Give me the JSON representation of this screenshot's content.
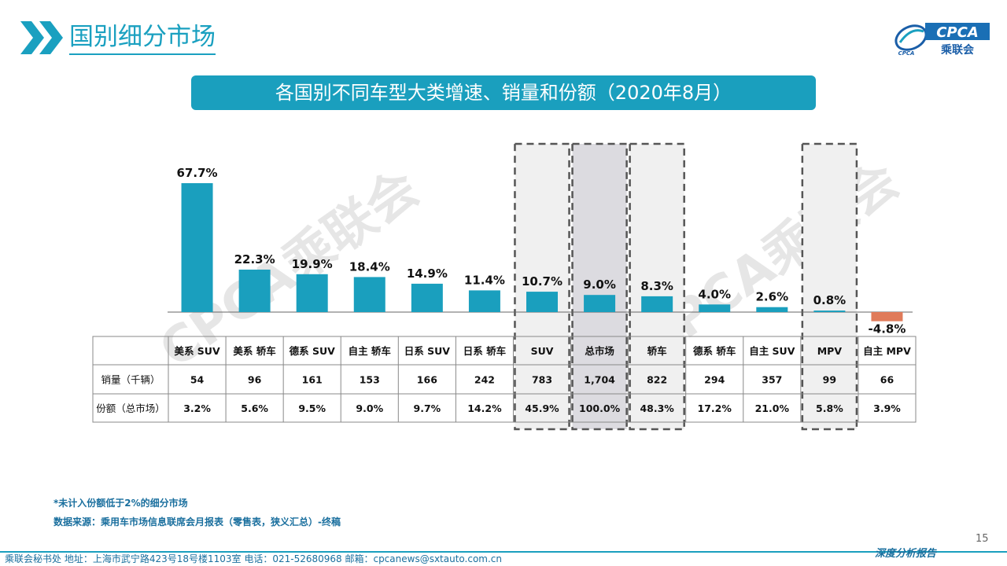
{
  "header": {
    "title": "国别细分市场",
    "logo_text": "CPCA",
    "logo_subtext": "乘联会",
    "logo_mark": "CPCA"
  },
  "banner": {
    "title": "各国别不同车型大类增速、销量和份额（2020年8月）"
  },
  "colors": {
    "accent": "#1aa0c0",
    "positive_bar": "#1a9fbe",
    "negative_bar": "#e07b5a"
  },
  "chart_data": {
    "type": "bar",
    "categories": [
      "美系 SUV",
      "美系 轿车",
      "德系 SUV",
      "自主 轿车",
      "日系 SUV",
      "日系 轿车",
      "SUV",
      "总市场",
      "轿车",
      "德系 轿车",
      "自主 SUV",
      "MPV",
      "自主 MPV"
    ],
    "values": [
      67.7,
      22.3,
      19.9,
      18.4,
      14.9,
      11.4,
      10.7,
      9.0,
      8.3,
      4.0,
      2.6,
      0.8,
      -4.8
    ],
    "value_labels": [
      "67.7%",
      "22.3%",
      "19.9%",
      "18.4%",
      "14.9%",
      "11.4%",
      "10.7%",
      "9.0%",
      "8.3%",
      "4.0%",
      "2.6%",
      "0.8%",
      "-4.8%"
    ],
    "highlighted": [
      "SUV",
      "总市场",
      "轿车",
      "MPV"
    ],
    "ylim": [
      -5,
      70
    ],
    "grid": false,
    "table": {
      "rows": [
        {
          "label": "销量（千辆）",
          "values": [
            "54",
            "96",
            "161",
            "153",
            "166",
            "242",
            "783",
            "1,704",
            "822",
            "294",
            "357",
            "99",
            "66"
          ]
        },
        {
          "label": "份额（总市场）",
          "values": [
            "3.2%",
            "5.6%",
            "9.5%",
            "9.0%",
            "9.7%",
            "14.2%",
            "45.9%",
            "100.0%",
            "48.3%",
            "17.2%",
            "21.0%",
            "5.8%",
            "3.9%"
          ]
        }
      ]
    }
  },
  "watermark": "CPCA乘联会",
  "notes": {
    "note1": "*未计入份额低于2%的细分市场",
    "note2": "数据来源：乘用车市场信息联席会月报表（零售表，狭义汇总）-终稿"
  },
  "footer": {
    "text": "乘联会秘书处   地址：上海市武宁路423号18号楼1103室   电话：021-52680968   邮箱：cpcanews@sxtauto.com.cn",
    "right_label": "深度分析报告",
    "page_number": "15"
  }
}
